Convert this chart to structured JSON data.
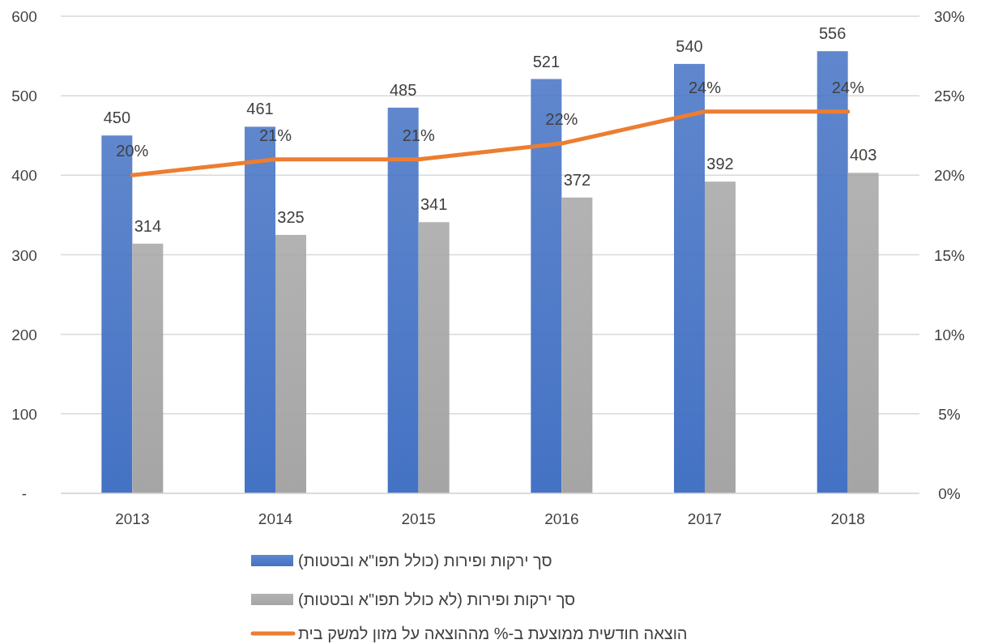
{
  "chart_data": {
    "type": "bar",
    "categories": [
      "2013",
      "2014",
      "2015",
      "2016",
      "2017",
      "2018"
    ],
    "series": [
      {
        "name": "סך ירקות ופירות (כולל תפו\"א ובטטות)",
        "color": "#4472c4",
        "values": [
          450,
          461,
          485,
          521,
          540,
          556
        ],
        "value_labels": [
          "450",
          "461",
          "485",
          "521",
          "540",
          "556"
        ]
      },
      {
        "name": "סך ירקות ופירות (לא כולל תפו\"א ובטטות)",
        "color": "#a5a5a5",
        "values": [
          314,
          325,
          341,
          372,
          392,
          403
        ],
        "value_labels": [
          "314",
          "325",
          "341",
          "372",
          "392",
          "403"
        ]
      },
      {
        "name": "הוצאה חודשית ממוצעת ב-% מההוצאה על מזון למשק בית",
        "color": "#ed7d31",
        "type": "line",
        "axis": "y2",
        "values": [
          20,
          21,
          21,
          22,
          24,
          24
        ],
        "value_labels": [
          "20%",
          "21%",
          "21%",
          "22%",
          "24%",
          "24%"
        ]
      }
    ],
    "ylim": [
      0,
      600
    ],
    "yticks": [
      {
        "value": 0,
        "label": "-"
      },
      100,
      200,
      300,
      400,
      500,
      600
    ],
    "y2lim": [
      0,
      30
    ],
    "y2ticks": [
      {
        "value": 0,
        "label": "0%"
      },
      {
        "value": 5,
        "label": "5%"
      },
      {
        "value": 10,
        "label": "10%"
      },
      {
        "value": 15,
        "label": "15%"
      },
      {
        "value": 20,
        "label": "20%"
      },
      {
        "value": 25,
        "label": "25%"
      },
      {
        "value": 30,
        "label": "30%"
      }
    ],
    "grid": "y",
    "legend": "bottom"
  }
}
